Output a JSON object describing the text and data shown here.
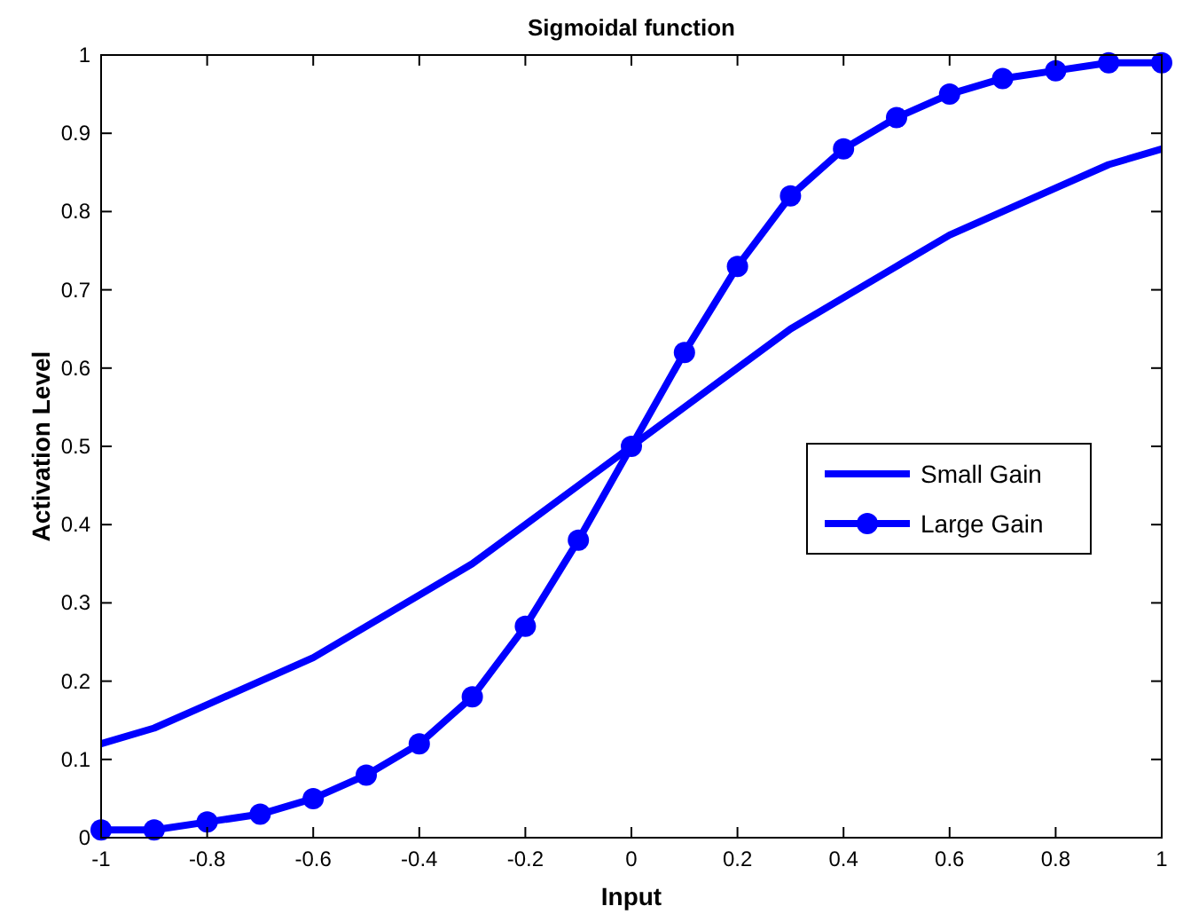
{
  "chart_data": {
    "type": "line",
    "title": "Sigmoidal function",
    "xlabel": "Input",
    "ylabel": "Activation Level",
    "x": [
      -1,
      -0.9,
      -0.8,
      -0.7,
      -0.6,
      -0.5,
      -0.4,
      -0.3,
      -0.2,
      -0.1,
      0,
      0.1,
      0.2,
      0.3,
      0.4,
      0.5,
      0.6,
      0.7,
      0.8,
      0.9,
      1
    ],
    "series": [
      {
        "name": "Small Gain",
        "color": "#0000ff",
        "marker": "none",
        "values": [
          0.12,
          0.14,
          0.17,
          0.2,
          0.23,
          0.27,
          0.31,
          0.35,
          0.4,
          0.45,
          0.5,
          0.55,
          0.6,
          0.65,
          0.69,
          0.73,
          0.77,
          0.8,
          0.83,
          0.86,
          0.88
        ]
      },
      {
        "name": "Large Gain",
        "color": "#0000ff",
        "marker": "circle",
        "values": [
          0.01,
          0.01,
          0.02,
          0.03,
          0.05,
          0.08,
          0.12,
          0.18,
          0.27,
          0.38,
          0.5,
          0.62,
          0.73,
          0.82,
          0.88,
          0.92,
          0.95,
          0.97,
          0.98,
          0.99,
          0.99
        ]
      }
    ],
    "xlim": [
      -1,
      1
    ],
    "xticks": [
      -1,
      -0.8,
      -0.6,
      -0.4,
      -0.2,
      0,
      0.2,
      0.4,
      0.6,
      0.8,
      1
    ],
    "ylim": [
      0,
      1
    ],
    "yticks": [
      0,
      0.1,
      0.2,
      0.3,
      0.4,
      0.5,
      0.6,
      0.7,
      0.8,
      0.9,
      1
    ],
    "legend": "right",
    "line_style": "solid"
  }
}
